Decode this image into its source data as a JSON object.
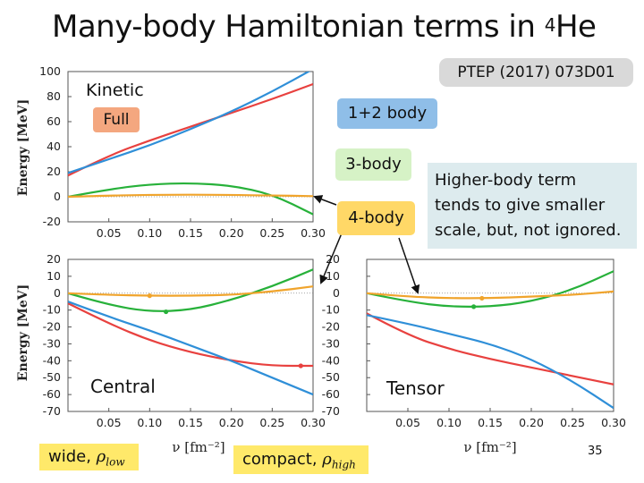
{
  "slide": {
    "title_main": "Many-body Hamiltonian terms in ",
    "title_sup": "4",
    "title_tail": "He",
    "reference": "PTEP (2017) 073D01",
    "kinetic_title": "Kinetic",
    "full_label": "Full",
    "one_two_body": "1+2 body",
    "three_body": "3-body",
    "four_body": "4-body",
    "note_lines": [
      "Higher-body term",
      "tends to give smaller",
      "scale, but, not ignored."
    ],
    "central_label": "Central",
    "tensor_label": "Tensor",
    "wide_label": "wide, ",
    "wide_rho_sub": "low",
    "compact_label": "compact, ",
    "compact_rho_sub": "high",
    "rho_symbol": "ρ",
    "page_number": "35",
    "colors": {
      "full": "#e8413f",
      "one_two": "#2f8fd8",
      "three": "#27b13a",
      "four": "#f0a42c"
    }
  },
  "chart_data": [
    {
      "type": "line",
      "name": "kinetic",
      "title": "Kinetic",
      "ylabel": "Energy [MeV]",
      "xlabel": "",
      "xlim": [
        0,
        0.3
      ],
      "ylim": [
        -20,
        100
      ],
      "xticks": [
        "0.05",
        "0.10",
        "0.15",
        "0.20",
        "0.25",
        "0.30"
      ],
      "yticks": [
        "100",
        "80",
        "60",
        "40",
        "20",
        "0",
        "-20"
      ],
      "series": [
        {
          "name": "Full",
          "color": "#e8413f",
          "x": [
            0,
            0.05,
            0.1,
            0.15,
            0.2,
            0.25,
            0.3
          ],
          "y": [
            17,
            33,
            45,
            56,
            67,
            78,
            90
          ]
        },
        {
          "name": "1+2 body",
          "color": "#2f8fd8",
          "x": [
            0,
            0.05,
            0.1,
            0.15,
            0.2,
            0.25,
            0.3
          ],
          "y": [
            19,
            30,
            41,
            54,
            68,
            84,
            102
          ]
        },
        {
          "name": "3-body",
          "color": "#27b13a",
          "x": [
            0,
            0.05,
            0.1,
            0.15,
            0.2,
            0.25,
            0.3
          ],
          "y": [
            0,
            6,
            10,
            11,
            9,
            2,
            -14
          ]
        },
        {
          "name": "4-body",
          "color": "#f0a42c",
          "x": [
            0,
            0.05,
            0.1,
            0.15,
            0.2,
            0.25,
            0.3
          ],
          "y": [
            0,
            1,
            1.5,
            1.7,
            1.5,
            1,
            0.5
          ]
        }
      ]
    },
    {
      "type": "line",
      "name": "central",
      "title": "Central",
      "ylabel": "Energy [MeV]",
      "xlabel": "ν [fm⁻²]",
      "xlim": [
        0,
        0.3
      ],
      "ylim": [
        -70,
        20
      ],
      "xticks": [
        "0.05",
        "0.10",
        "0.15",
        "0.20",
        "0.25",
        "0.30"
      ],
      "yticks": [
        "20",
        "10",
        "0",
        "-10",
        "-20",
        "-30",
        "-40",
        "-50",
        "-60",
        "-70"
      ],
      "series": [
        {
          "name": "Full",
          "color": "#e8413f",
          "x": [
            0,
            0.05,
            0.1,
            0.15,
            0.2,
            0.25,
            0.3
          ],
          "y": [
            -6,
            -18,
            -28,
            -35,
            -40,
            -43,
            -43
          ]
        },
        {
          "name": "1+2 body",
          "color": "#2f8fd8",
          "x": [
            0,
            0.05,
            0.1,
            0.15,
            0.2,
            0.25,
            0.3
          ],
          "y": [
            -5,
            -14,
            -22,
            -31,
            -40,
            -50,
            -60
          ]
        },
        {
          "name": "3-body",
          "color": "#27b13a",
          "x": [
            0,
            0.05,
            0.1,
            0.15,
            0.2,
            0.25,
            0.3
          ],
          "y": [
            0,
            -7,
            -11,
            -10,
            -4,
            4,
            14
          ]
        },
        {
          "name": "4-body",
          "color": "#f0a42c",
          "x": [
            0,
            0.05,
            0.1,
            0.15,
            0.2,
            0.25,
            0.3
          ],
          "y": [
            0,
            -1,
            -1.5,
            -1.5,
            -1,
            1,
            4
          ]
        }
      ],
      "markers": [
        {
          "series": "Full",
          "x": 0.285,
          "y": -43
        },
        {
          "series": "3-body",
          "x": 0.12,
          "y": -11
        },
        {
          "series": "4-body",
          "x": 0.1,
          "y": -1.5
        }
      ]
    },
    {
      "type": "line",
      "name": "tensor",
      "title": "Tensor",
      "ylabel": "",
      "xlabel": "ν [fm⁻²]",
      "xlim": [
        0,
        0.3
      ],
      "ylim": [
        -70,
        20
      ],
      "xticks": [
        "0.05",
        "0.10",
        "0.15",
        "0.20",
        "0.25",
        "0.30"
      ],
      "yticks": [
        "20",
        "10",
        "0",
        "-10",
        "-20",
        "-30",
        "-40",
        "-50",
        "-60",
        "-70"
      ],
      "series": [
        {
          "name": "Full",
          "color": "#e8413f",
          "x": [
            0,
            0.05,
            0.1,
            0.15,
            0.2,
            0.25,
            0.3
          ],
          "y": [
            -12,
            -25,
            -33,
            -39,
            -44,
            -49,
            -54
          ]
        },
        {
          "name": "1+2 body",
          "color": "#2f8fd8",
          "x": [
            0,
            0.05,
            0.1,
            0.15,
            0.2,
            0.25,
            0.3
          ],
          "y": [
            -13,
            -18,
            -24,
            -30,
            -39,
            -52,
            -68
          ]
        },
        {
          "name": "3-body",
          "color": "#27b13a",
          "x": [
            0,
            0.05,
            0.1,
            0.15,
            0.2,
            0.25,
            0.3
          ],
          "y": [
            0,
            -5,
            -8,
            -8,
            -5,
            2,
            13
          ]
        },
        {
          "name": "4-body",
          "color": "#f0a42c",
          "x": [
            0,
            0.05,
            0.1,
            0.15,
            0.2,
            0.25,
            0.3
          ],
          "y": [
            0,
            -2,
            -3,
            -3,
            -2,
            -1,
            1
          ]
        }
      ],
      "markers": [
        {
          "series": "3-body",
          "x": 0.13,
          "y": -8
        },
        {
          "series": "4-body",
          "x": 0.14,
          "y": -3
        }
      ]
    }
  ]
}
